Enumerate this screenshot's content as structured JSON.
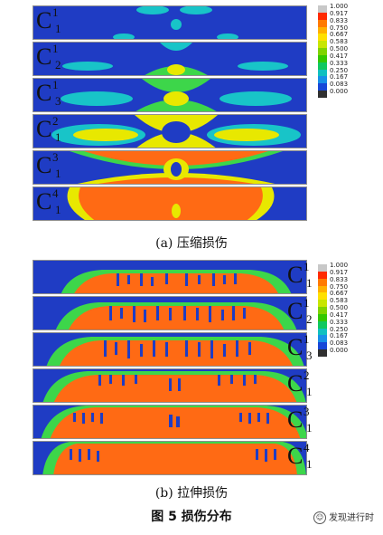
{
  "compression": {
    "caption": "(a) 压缩损伤",
    "panels": [
      {
        "sup": "1",
        "sub": "1",
        "letter": "C"
      },
      {
        "sup": "1",
        "sub": "2",
        "letter": "C"
      },
      {
        "sup": "1",
        "sub": "3",
        "letter": "C"
      },
      {
        "sup": "2",
        "sub": "1",
        "letter": "C"
      },
      {
        "sup": "3",
        "sub": "1",
        "letter": "C"
      },
      {
        "sup": "4",
        "sub": "1",
        "letter": "C"
      }
    ]
  },
  "tension": {
    "caption": "(b) 拉伸损伤",
    "panels": [
      {
        "sup": "1",
        "sub": "1",
        "letter": "C"
      },
      {
        "sup": "1",
        "sub": "2",
        "letter": "C"
      },
      {
        "sup": "1",
        "sub": "3",
        "letter": "C"
      },
      {
        "sup": "2",
        "sub": "1",
        "letter": "C"
      },
      {
        "sup": "3",
        "sub": "1",
        "letter": "C"
      },
      {
        "sup": "4",
        "sub": "1",
        "letter": "C"
      }
    ]
  },
  "legend": {
    "values": [
      "1.000",
      "0.917",
      "0.833",
      "0.750",
      "0.667",
      "0.583",
      "0.500",
      "0.417",
      "0.333",
      "0.250",
      "0.167",
      "0.083",
      "0.000"
    ],
    "colors": [
      "#c8c8c8",
      "#ff2a00",
      "#ff7a00",
      "#ffb000",
      "#ffe000",
      "#c8e600",
      "#7fd400",
      "#34c800",
      "#10c860",
      "#10c0c0",
      "#1890e8",
      "#1848d8",
      "#303030"
    ]
  },
  "figure_title": "图 5    损伤分布",
  "brand": "发现进行时",
  "field_colors": {
    "undamaged": "#1f3cc4",
    "cyan": "#18c4c8",
    "green": "#3dd64a",
    "yellow": "#e8e800",
    "orange": "#ff6a14",
    "red": "#ff2a00"
  }
}
